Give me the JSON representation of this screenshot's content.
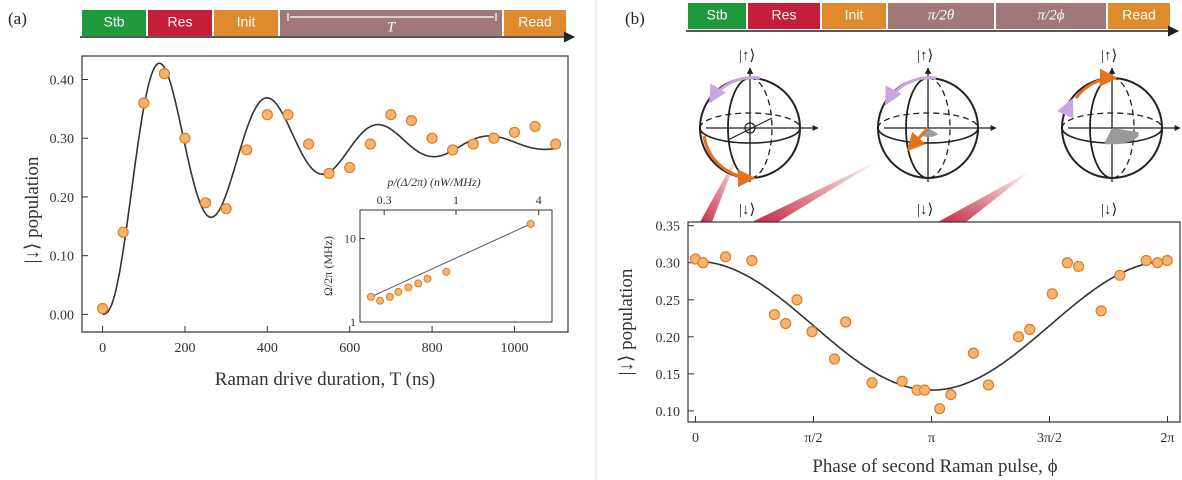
{
  "colors": {
    "stb": "#1e9a3c",
    "res": "#c41e3a",
    "init": "#e08a2e",
    "evolve": "#a0787c",
    "read": "#e08a2e",
    "marker_fill": "#f4b474",
    "marker_stroke": "#e07d1c",
    "fit_line": "#333333",
    "bloch_arrow_purple": "#c8a6e0",
    "bloch_arrow_orange": "#e5721c",
    "red_ray": "#c41e3a"
  },
  "panel_a": {
    "label": "(a)",
    "sequence": [
      "Stb",
      "Res",
      "Init",
      "T",
      "Read"
    ],
    "ylabel": "|↓⟩ population",
    "xlabel": "Raman drive  duration, T (ns)"
  },
  "panel_b": {
    "label": "(b)",
    "sequence": [
      "Stb",
      "Res",
      "Init",
      "π/2θ",
      "π/2ϕ",
      "Read"
    ],
    "kets": [
      "|↑⟩",
      "|↓⟩",
      "|↑⟩",
      "|↓⟩",
      "|↑⟩",
      "|↓⟩"
    ],
    "ylabel": "|↓⟩ population",
    "xlabel": "Phase of second Raman pulse, ϕ"
  },
  "chart_data": [
    {
      "type": "scatter",
      "panel": "(a)",
      "xlabel": "Raman drive  duration, T (ns)",
      "ylabel": "|↓⟩ population",
      "xlim": [
        -50,
        1130
      ],
      "ylim": [
        -0.03,
        0.44
      ],
      "xticks": [
        0,
        200,
        400,
        600,
        800,
        1000
      ],
      "yticks": [
        0.0,
        0.1,
        0.2,
        0.3,
        0.4
      ],
      "ytick_labels": [
        "0.00",
        "0.10",
        "0.20",
        "0.30",
        "0.40"
      ],
      "series": [
        {
          "x": [
            0,
            50,
            100,
            150,
            200,
            250,
            300,
            350,
            400,
            450,
            500,
            550,
            600,
            650,
            700,
            750,
            800,
            850,
            900,
            950,
            1000,
            1050,
            1100
          ],
          "y": [
            0.01,
            0.14,
            0.36,
            0.41,
            0.3,
            0.19,
            0.18,
            0.28,
            0.34,
            0.34,
            0.29,
            0.24,
            0.25,
            0.29,
            0.34,
            0.33,
            0.3,
            0.28,
            0.29,
            0.3,
            0.31,
            0.32,
            0.29
          ]
        }
      ],
      "fit": {
        "offset": 0.29,
        "amplitude": 0.29,
        "period_ns": 270,
        "decay_ns": 310,
        "rise_ns": 60,
        "x_range": [
          0,
          1100
        ]
      },
      "inset": {
        "type": "scatter",
        "xlabel_top": "p/(Δ/2π) (nW/MHz)",
        "ylabel": "Ω/2π (MHz)",
        "log_x": true,
        "log_y": true,
        "xlim": [
          0.2,
          5
        ],
        "ylim": [
          1,
          22
        ],
        "xticks": [
          0.3,
          1,
          4
        ],
        "yticks": [
          1,
          10
        ],
        "x": [
          0.24,
          0.28,
          0.33,
          0.38,
          0.45,
          0.53,
          0.62,
          0.85,
          3.5
        ],
        "y": [
          2.0,
          1.8,
          2.0,
          2.3,
          2.6,
          2.9,
          3.3,
          4.0,
          15.0
        ]
      }
    },
    {
      "type": "scatter",
      "panel": "(b)",
      "xlabel": "Phase of second Raman pulse, ϕ",
      "ylabel": "|↓⟩ population",
      "xlim": [
        -0.1,
        6.45
      ],
      "ylim": [
        0.085,
        0.355
      ],
      "xticks": [
        0,
        1.5708,
        3.1416,
        4.7124,
        6.2832
      ],
      "xtick_labels": [
        "0",
        "π/2",
        "π",
        "3π/2",
        "2π"
      ],
      "yticks": [
        0.1,
        0.15,
        0.2,
        0.25,
        0.3,
        0.35
      ],
      "ytick_labels": [
        "0.10",
        "0.15",
        "0.20",
        "0.25",
        "0.30",
        "0.35"
      ],
      "series": [
        {
          "x": [
            0.0,
            0.1,
            0.4,
            0.75,
            1.05,
            1.2,
            1.35,
            1.55,
            1.85,
            2.0,
            2.35,
            2.75,
            2.95,
            3.05,
            3.25,
            3.4,
            3.7,
            3.9,
            4.3,
            4.45,
            4.75,
            4.95,
            5.1,
            5.4,
            5.65,
            6.0,
            6.15,
            6.28
          ],
          "y": [
            0.305,
            0.3,
            0.308,
            0.303,
            0.23,
            0.218,
            0.25,
            0.207,
            0.17,
            0.22,
            0.138,
            0.14,
            0.128,
            0.128,
            0.103,
            0.122,
            0.178,
            0.135,
            0.2,
            0.21,
            0.258,
            0.3,
            0.295,
            0.235,
            0.283,
            0.303,
            0.3,
            0.303
          ]
        }
      ],
      "fit": {
        "offset": 0.215,
        "amplitude": 0.087,
        "x_range": [
          0,
          6.2832
        ]
      }
    }
  ]
}
